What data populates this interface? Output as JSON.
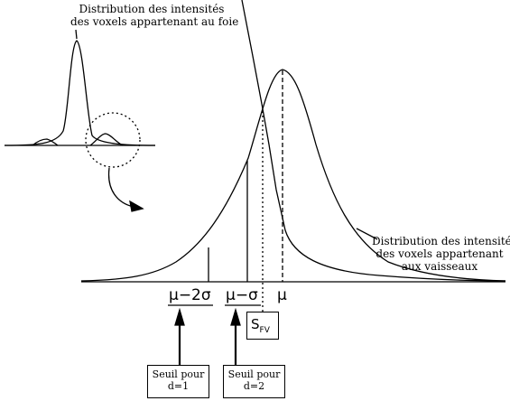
{
  "labels": {
    "liver_line1": "Distribution des intensités",
    "liver_line2": "des voxels appartenant au foie",
    "vessel_line1": "Distribution des intensités",
    "vessel_line2": "des voxels appartenant",
    "vessel_line3": "aux vaisseaux"
  },
  "thresholds": {
    "mu_minus_2sigma": "μ−2σ",
    "mu_minus_sigma": "μ−σ",
    "mu": "μ",
    "sfv_main": "S",
    "sfv_sub": "FV"
  },
  "boxes": {
    "d1_line1": "Seuil pour",
    "d1_line2": "d=1",
    "d2_line1": "Seuil pour",
    "d2_line2": "d=2"
  }
}
